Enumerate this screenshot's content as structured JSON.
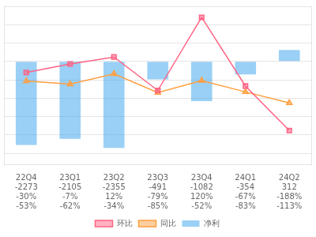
{
  "chart_data": {
    "type": "bar",
    "categories": [
      "22Q4",
      "23Q1",
      "23Q2",
      "23Q3",
      "23Q4",
      "24Q1",
      "24Q2"
    ],
    "series": [
      {
        "name": "净利",
        "type": "bar",
        "values": [
          -2273,
          -2105,
          -2355,
          -491,
          -1082,
          -354,
          312
        ]
      },
      {
        "name": "环比",
        "type": "line",
        "axis": "y2",
        "marker": "square",
        "values": [
          -30,
          -7,
          12,
          -79,
          120,
          -67,
          -188
        ],
        "value_labels": [
          "-30%",
          "-7%",
          "12%",
          "-79%",
          "120%",
          "-67%",
          "-188%"
        ]
      },
      {
        "name": "同比",
        "type": "line",
        "axis": "y2",
        "marker": "triangle",
        "values": [
          -53,
          -62,
          -34,
          -85,
          -52,
          -83,
          -113
        ],
        "value_labels": [
          "-53%",
          "-62%",
          "-34%",
          "-85%",
          "-52%",
          "-83%",
          "-113%"
        ]
      }
    ],
    "ylim": [
      -2800,
      1500
    ],
    "yticks": [
      -2500,
      -2000,
      -1500,
      -1000,
      -500,
      0,
      500,
      1000,
      1500
    ],
    "y2lim": [
      -280,
      150
    ],
    "grid": true,
    "legend": "bottom",
    "tick_labels": "x",
    "data_labels": true
  }
}
